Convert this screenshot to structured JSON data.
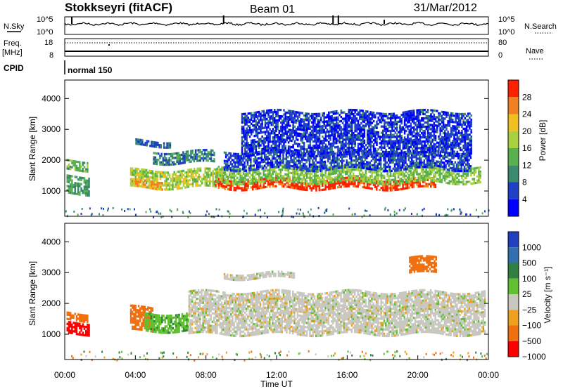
{
  "header": {
    "station": "Stokkseyri (fitACF)",
    "beam": "Beam 01",
    "date": "31/Mar/2012"
  },
  "left_labels": {
    "nsky": "N.Sky",
    "freq": "Freq.",
    "mhz": "[MHz]",
    "cpid": "CPID"
  },
  "right_labels": {
    "nsearch": "N.Search",
    "nave": "Nave"
  },
  "cpid_text": "normal 150",
  "noise_panel": {
    "left_ticks": [
      "10^5",
      "10^0"
    ],
    "right_ticks": [
      "10^5",
      "10^0"
    ]
  },
  "freq_panel": {
    "left_ticks": [
      "18",
      "8"
    ],
    "right_ticks": [
      "80",
      "0"
    ]
  },
  "colors": {
    "velocity_grey": "#c8c8c0",
    "power_scale": [
      "#0000ff",
      "#2040c8",
      "#3a8a6e",
      "#58b050",
      "#a8d040",
      "#f0c020",
      "#f08020",
      "#ff2000"
    ],
    "velocity_scale": [
      "#2040c0",
      "#3070b0",
      "#308040",
      "#60c030",
      "#c8c8c0",
      "#f0a020",
      "#f07010",
      "#ff0000"
    ]
  },
  "chart_data": [
    {
      "type": "heatmap",
      "name_param": "power",
      "ylabel": "Slant Range [km]",
      "ylim": [
        180,
        4600
      ],
      "yticks": [
        "1000",
        "2000",
        "3000",
        "4000"
      ],
      "colorbar_label": "Power [dB]",
      "colorbar_ticks": [
        "4",
        "8",
        "12",
        "16",
        "20",
        "24",
        "28"
      ],
      "colorbar_range": [
        0,
        32
      ],
      "xlim": [
        0,
        24
      ],
      "bands": [
        {
          "t0": 0.1,
          "t1": 1.4,
          "r0": 900,
          "r1": 1500,
          "v": 12
        },
        {
          "t0": 0.1,
          "t1": 1.3,
          "r0": 1700,
          "r1": 2000,
          "v": 14
        },
        {
          "t0": 3.7,
          "t1": 9.0,
          "r0": 1100,
          "r1": 1700,
          "v": 18
        },
        {
          "t0": 3.9,
          "t1": 5.5,
          "r0": 1100,
          "r1": 1350,
          "v": 24
        },
        {
          "t0": 8.5,
          "t1": 21.0,
          "r0": 1100,
          "r1": 1400,
          "v": 30
        },
        {
          "t0": 8.5,
          "t1": 23.5,
          "r0": 1300,
          "r1": 1800,
          "v": 16
        },
        {
          "t0": 9.0,
          "t1": 23.0,
          "r0": 1700,
          "r1": 2300,
          "v": 6
        },
        {
          "t0": 5.0,
          "t1": 8.5,
          "r0": 1900,
          "r1": 2300,
          "v": 10
        },
        {
          "t0": 4.0,
          "t1": 6.0,
          "r0": 2450,
          "r1": 2650,
          "v": 8
        },
        {
          "t0": 10.0,
          "t1": 23.0,
          "r0": 2200,
          "r1": 3600,
          "v": 5
        }
      ]
    },
    {
      "type": "heatmap",
      "name_param": "velocity",
      "xlabel": "Time UT",
      "ylabel": "Slant Range [km]",
      "ylim": [
        180,
        4600
      ],
      "yticks": [
        "1000",
        "2000",
        "3000",
        "4000"
      ],
      "xticks": [
        "00:00",
        "04:00",
        "08:00",
        "12:00",
        "16:00",
        "20:00",
        "00:00"
      ],
      "xlim": [
        0,
        24
      ],
      "colorbar_label": "Velocity [m s⁻¹]",
      "colorbar_ticks": [
        "1000",
        "500",
        "100",
        "25",
        "−25",
        "−100",
        "−500",
        "−1000"
      ],
      "bands": [
        {
          "t0": 0.1,
          "t1": 1.4,
          "r0": 1000,
          "r1": 1400,
          "v": -700
        },
        {
          "t0": 0.1,
          "t1": 1.3,
          "r0": 1450,
          "r1": 1700,
          "v": -150
        },
        {
          "t0": 3.7,
          "t1": 5.0,
          "r0": 1100,
          "r1": 1900,
          "v": -150
        },
        {
          "t0": 4.5,
          "t1": 7.0,
          "r0": 1100,
          "r1": 1700,
          "v": 80
        },
        {
          "t0": 7.0,
          "t1": 23.8,
          "r0": 1000,
          "r1": 1800,
          "v": 0
        },
        {
          "t0": 7.0,
          "t1": 23.8,
          "r0": 1800,
          "r1": 2400,
          "v": 0
        },
        {
          "t0": 9.0,
          "t1": 13.0,
          "r0": 2800,
          "r1": 3000,
          "v": 0
        },
        {
          "t0": 19.5,
          "t1": 21.0,
          "r0": 3000,
          "r1": 3500,
          "v": -150
        }
      ]
    }
  ]
}
